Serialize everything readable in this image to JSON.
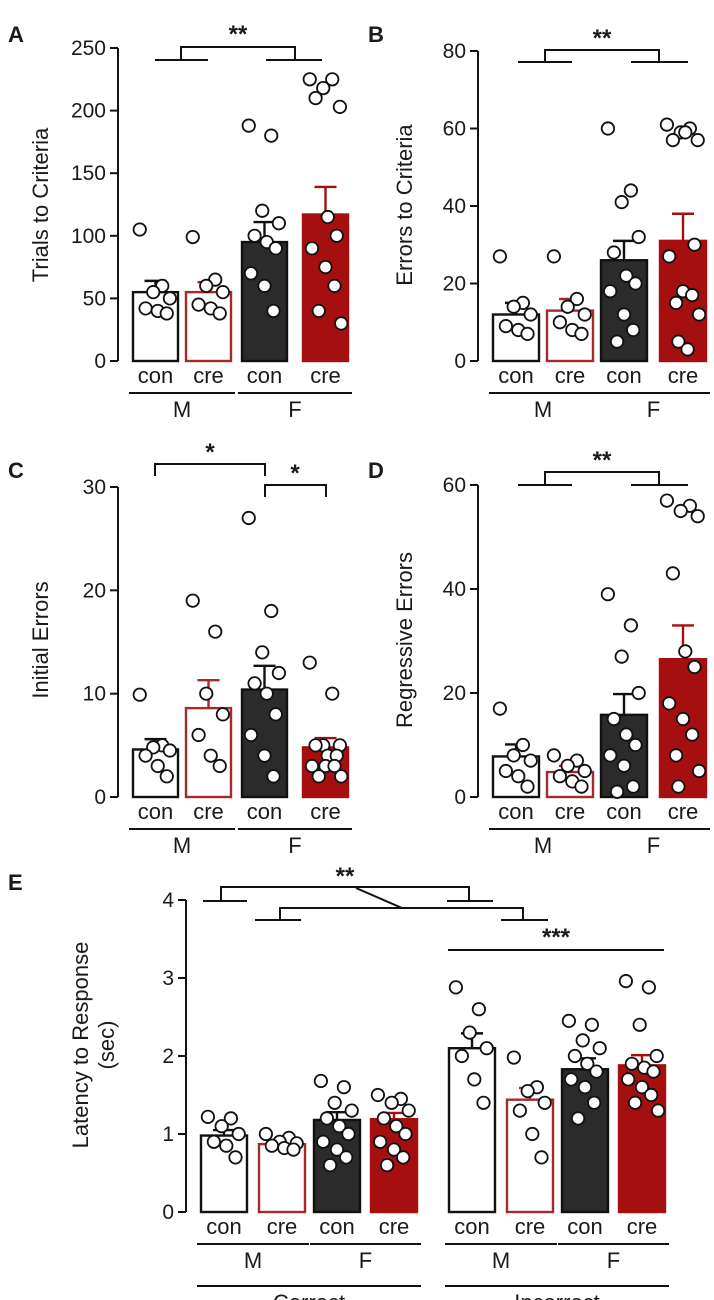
{
  "colors": {
    "con_M": "#ffffff",
    "cre_M": "#ffffff",
    "con_F": "#2b2b2b",
    "cre_F": "#a50f0f",
    "cre_outline": "#a52a2a",
    "dark_outline": "#111111"
  },
  "chart_data": [
    {
      "panel": "A",
      "type": "bar",
      "ylabel": "Trials to Criteria",
      "ylim": [
        0,
        250
      ],
      "yticks": [
        "0",
        "50",
        "100",
        "150",
        "200",
        "250"
      ],
      "categories": [
        "con",
        "cre",
        "con",
        "cre"
      ],
      "groups": [
        "M",
        "F"
      ],
      "values": [
        55,
        55,
        95,
        117
      ],
      "errors": [
        9,
        8,
        16,
        22
      ],
      "points": [
        [
          105,
          60,
          55,
          50,
          42,
          40,
          38
        ],
        [
          99,
          65,
          60,
          55,
          45,
          42,
          38
        ],
        [
          188,
          180,
          120,
          110,
          100,
          95,
          90,
          70,
          60,
          40
        ],
        [
          225,
          225,
          218,
          203,
          210,
          115,
          100,
          90,
          75,
          60,
          40,
          30
        ]
      ],
      "significance": [
        {
          "label": "**",
          "compare": "M vs F"
        }
      ]
    },
    {
      "panel": "B",
      "type": "bar",
      "ylabel": "Errors to Criteria",
      "ylim": [
        0,
        80
      ],
      "yticks": [
        "0",
        "20",
        "40",
        "60",
        "80"
      ],
      "categories": [
        "con",
        "cre",
        "con",
        "cre"
      ],
      "groups": [
        "M",
        "F"
      ],
      "values": [
        12,
        13,
        26,
        31
      ],
      "errors": [
        3,
        3,
        5,
        7
      ],
      "points": [
        [
          27,
          15,
          14,
          12,
          9,
          8,
          7
        ],
        [
          27,
          16,
          14,
          12,
          10,
          8,
          7
        ],
        [
          60,
          44,
          41,
          32,
          28,
          22,
          20,
          18,
          12,
          8,
          5
        ],
        [
          61,
          60,
          59,
          57,
          57,
          59,
          30,
          27,
          18,
          17,
          15,
          12,
          5,
          3
        ]
      ],
      "significance": [
        {
          "label": "**",
          "compare": "M vs F"
        }
      ]
    },
    {
      "panel": "C",
      "type": "bar",
      "ylabel": "Initial Errors",
      "ylim": [
        0,
        30
      ],
      "yticks": [
        "0",
        "10",
        "20",
        "30"
      ],
      "categories": [
        "con",
        "cre",
        "con",
        "cre"
      ],
      "groups": [
        "M",
        "F"
      ],
      "values": [
        4.6,
        8.6,
        10.4,
        4.8
      ],
      "errors": [
        1.0,
        2.7,
        2.3,
        0.9
      ],
      "points": [
        [
          9.9,
          5.0,
          4.8,
          4.5,
          4.0,
          3.0,
          2.0
        ],
        [
          19,
          16,
          10,
          8,
          6,
          4,
          3
        ],
        [
          27,
          18,
          14,
          12,
          11,
          10,
          8,
          6,
          4,
          2
        ],
        [
          13,
          10,
          5,
          5,
          5,
          4,
          4,
          3,
          3,
          3,
          2,
          2
        ]
      ],
      "significance": [
        {
          "label": "*",
          "compare": "M con vs F con"
        },
        {
          "label": "*",
          "compare": "F con vs F cre"
        }
      ]
    },
    {
      "panel": "D",
      "type": "bar",
      "ylabel": "Regressive Errors",
      "ylim": [
        0,
        60
      ],
      "yticks": [
        "0",
        "20",
        "40",
        "60"
      ],
      "categories": [
        "con",
        "cre",
        "con",
        "cre"
      ],
      "groups": [
        "M",
        "F"
      ],
      "values": [
        7.8,
        4.8,
        15.8,
        26.5
      ],
      "errors": [
        2.3,
        1.2,
        4.0,
        6.5
      ],
      "points": [
        [
          17,
          10,
          8,
          7,
          5,
          4,
          2
        ],
        [
          8,
          7,
          6,
          5,
          4,
          3,
          2
        ],
        [
          39,
          33,
          27,
          20,
          15,
          12,
          10,
          8,
          6,
          2,
          1
        ],
        [
          57,
          56,
          55,
          54,
          43,
          28,
          25,
          18,
          15,
          12,
          8,
          5,
          2
        ]
      ],
      "significance": [
        {
          "label": "**",
          "compare": "M vs F"
        }
      ]
    },
    {
      "panel": "E",
      "type": "bar",
      "ylabel": [
        "Latency to Response",
        "(sec)"
      ],
      "ylim": [
        0,
        4
      ],
      "yticks": [
        "0",
        "1",
        "2",
        "3",
        "4"
      ],
      "categories": [
        "con",
        "cre",
        "con",
        "cre",
        "con",
        "cre",
        "con",
        "cre"
      ],
      "groups": [
        "M",
        "F",
        "M",
        "F"
      ],
      "supergroups": [
        "Correct",
        "Incorrect"
      ],
      "values": [
        0.98,
        0.87,
        1.18,
        1.19,
        2.1,
        1.44,
        1.83,
        1.88
      ],
      "errors": [
        0.07,
        0.04,
        0.1,
        0.08,
        0.19,
        0.15,
        0.14,
        0.13
      ],
      "points": [
        [
          1.22,
          1.2,
          1.1,
          1.0,
          0.9,
          0.85,
          0.7
        ],
        [
          1.0,
          0.95,
          0.9,
          0.88,
          0.85,
          0.82,
          0.8
        ],
        [
          1.68,
          1.6,
          1.4,
          1.3,
          1.2,
          1.1,
          1.0,
          0.9,
          0.8,
          0.7,
          0.6
        ],
        [
          1.5,
          1.45,
          1.4,
          1.3,
          1.2,
          1.1,
          1.0,
          0.9,
          0.8,
          0.7,
          0.6
        ],
        [
          2.88,
          2.6,
          2.3,
          2.1,
          2.0,
          1.7,
          1.4
        ],
        [
          1.98,
          1.6,
          1.55,
          1.4,
          1.3,
          1.0,
          0.7
        ],
        [
          2.45,
          2.4,
          2.2,
          2.1,
          2.0,
          1.9,
          1.8,
          1.7,
          1.6,
          1.4,
          1.2
        ],
        [
          2.96,
          2.88,
          2.4,
          2.0,
          1.9,
          1.85,
          1.8,
          1.7,
          1.6,
          1.5,
          1.4,
          1.3
        ]
      ],
      "significance": [
        {
          "label": "**",
          "compare": "interaction"
        },
        {
          "label": "***",
          "compare": "Correct vs Incorrect"
        }
      ]
    }
  ]
}
